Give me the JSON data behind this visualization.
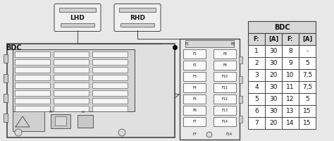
{
  "bdc_label": "BDC",
  "lhd_label": "LHD",
  "rhd_label": "RHD",
  "table_header": [
    "F:",
    "[A]",
    "F:",
    "[A]"
  ],
  "table_rows": [
    [
      "1",
      "30",
      "8",
      "-"
    ],
    [
      "2",
      "30",
      "9",
      "5"
    ],
    [
      "3",
      "20",
      "10",
      "7,5"
    ],
    [
      "4",
      "30",
      "11",
      "7,5"
    ],
    [
      "5",
      "30",
      "12",
      "5"
    ],
    [
      "6",
      "30",
      "13",
      "15"
    ],
    [
      "7",
      "20",
      "14",
      "15"
    ]
  ],
  "bg_color": "#e8e8e8",
  "table_bg": "#ffffff",
  "header_bg": "#d8d8d8",
  "line_color": "#444444",
  "text_color": "#111111",
  "fuse_left": [
    "F1",
    "F2",
    "F3",
    "F4",
    "F5",
    "F6",
    "F7"
  ],
  "fuse_right": [
    "F8",
    "F9",
    "F10",
    "F11",
    "F12",
    "F13",
    "F14"
  ],
  "fuse_top_left": "F1",
  "fuse_top_right": "F8",
  "fuse_bot_left": "F7",
  "fuse_bot_right": "F14"
}
